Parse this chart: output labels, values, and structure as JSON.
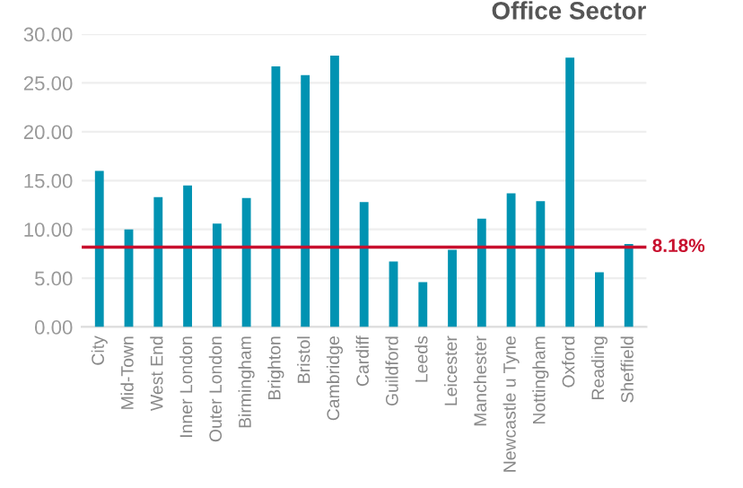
{
  "chart_data": {
    "type": "bar",
    "title": "Office Sector",
    "categories": [
      "City",
      "Mid-Town",
      "West End",
      "Inner London",
      "Outer London",
      "Birmingham",
      "Brighton",
      "Bristol",
      "Cambridge",
      "Cardiff",
      "Guildford",
      "Leeds",
      "Leicester",
      "Manchester",
      "Newcastle u Tyne",
      "Nottingham",
      "Oxford",
      "Reading",
      "Sheffield"
    ],
    "values": [
      16.0,
      10.0,
      13.3,
      14.5,
      10.6,
      13.2,
      26.7,
      25.8,
      27.8,
      12.8,
      6.7,
      4.6,
      7.9,
      11.1,
      13.7,
      12.9,
      27.6,
      5.6,
      8.5
    ],
    "color": "#0093b2",
    "ylim": [
      0,
      30
    ],
    "yticks": [
      {
        "value": 0,
        "label": "0.00"
      },
      {
        "value": 5,
        "label": "5.00"
      },
      {
        "value": 10,
        "label": "10.00"
      },
      {
        "value": 15,
        "label": "15.00"
      },
      {
        "value": 20,
        "label": "20.00"
      },
      {
        "value": 25,
        "label": "25.00"
      },
      {
        "value": 30,
        "label": "30.00"
      }
    ],
    "grid": "y",
    "ref_lines": [
      {
        "axis": "y",
        "value": 8.18,
        "label": "8.18%",
        "color": "#c8102e"
      }
    ]
  }
}
